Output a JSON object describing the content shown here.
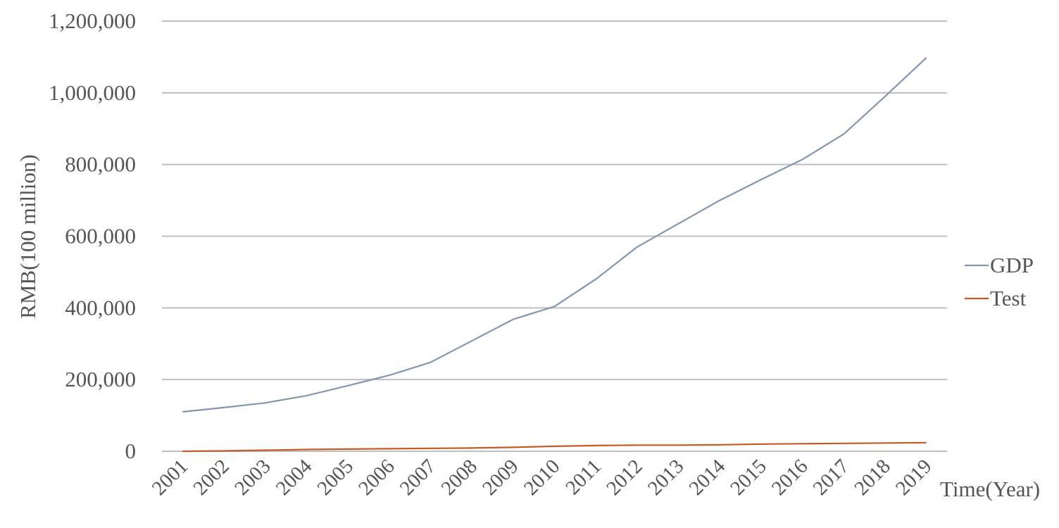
{
  "chart_data": {
    "type": "line",
    "title": "",
    "xlabel": "Time(Year)",
    "ylabel": "RMB(100 million)",
    "ylim": [
      0,
      1200000
    ],
    "yticks": [
      "0",
      "200,000",
      "400,000",
      "600,000",
      "800,000",
      "1,000,000",
      "1,200,000"
    ],
    "categories": [
      "2001",
      "2002",
      "2003",
      "2004",
      "2005",
      "2006",
      "2007",
      "2008",
      "2009",
      "2010",
      "2011",
      "2012",
      "2013",
      "2014",
      "2015",
      "2016",
      "2017",
      "2018",
      "2019"
    ],
    "grid": true,
    "legend_position": "right",
    "series": [
      {
        "name": "GDP",
        "color": "#8497b0",
        "values": [
          110000,
          122000,
          135000,
          155000,
          183000,
          212000,
          248000,
          308000,
          368000,
          404000,
          480000,
          570000,
          635000,
          700000,
          758000,
          814000,
          885000,
          990000,
          1098000
        ]
      },
      {
        "name": "Test",
        "color": "#c55a28",
        "values": [
          0,
          1000,
          3000,
          5000,
          6000,
          7000,
          8000,
          9000,
          11000,
          14000,
          16000,
          17000,
          17000,
          18000,
          20000,
          21000,
          22000,
          23000,
          24000
        ]
      }
    ]
  }
}
